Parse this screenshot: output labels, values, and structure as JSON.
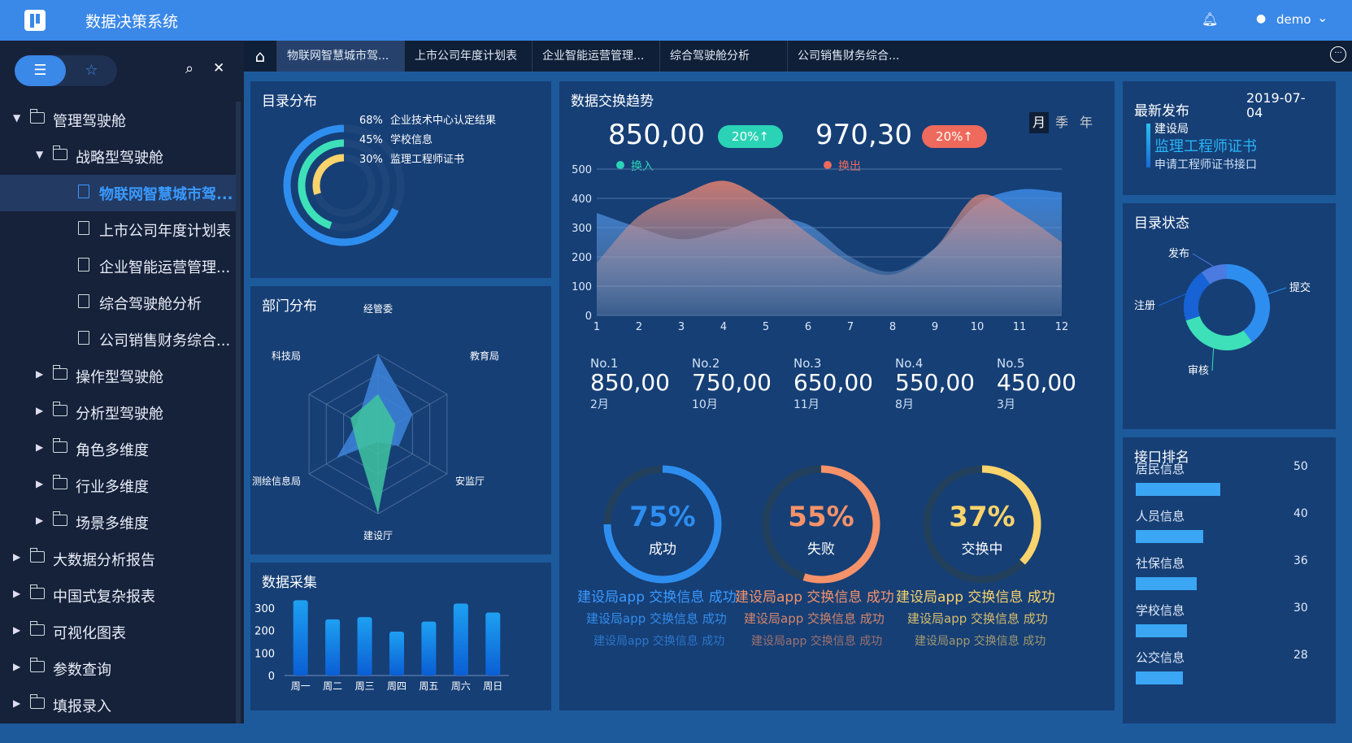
{
  "app": {
    "title": "数据决策系统",
    "username": "demo"
  },
  "sidebar": {
    "tree": [
      {
        "label": "管理驾驶舱",
        "level": 0,
        "type": "folder",
        "expanded": true
      },
      {
        "label": "战略型驾驶舱",
        "level": 1,
        "type": "folder",
        "expanded": true
      },
      {
        "label": "物联网智慧城市驾...",
        "level": 2,
        "type": "doc",
        "active": true
      },
      {
        "label": "上市公司年度计划表",
        "level": 2,
        "type": "doc"
      },
      {
        "label": "企业智能运营管理...",
        "level": 2,
        "type": "doc"
      },
      {
        "label": "综合驾驶舱分析",
        "level": 2,
        "type": "doc"
      },
      {
        "label": "公司销售财务综合...",
        "level": 2,
        "type": "doc"
      },
      {
        "label": "操作型驾驶舱",
        "level": 1,
        "type": "folder"
      },
      {
        "label": "分析型驾驶舱",
        "level": 1,
        "type": "folder"
      },
      {
        "label": "角色多维度",
        "level": 1,
        "type": "folder"
      },
      {
        "label": "行业多维度",
        "level": 1,
        "type": "folder"
      },
      {
        "label": "场景多维度",
        "level": 1,
        "type": "folder"
      },
      {
        "label": "大数据分析报告",
        "level": 0,
        "type": "folder"
      },
      {
        "label": "中国式复杂报表",
        "level": 0,
        "type": "folder"
      },
      {
        "label": "可视化图表",
        "level": 0,
        "type": "folder"
      },
      {
        "label": "参数查询",
        "level": 0,
        "type": "folder"
      },
      {
        "label": "填报录入",
        "level": 0,
        "type": "folder"
      }
    ]
  },
  "tabs": [
    {
      "label": "物联网智慧城市驾...",
      "active": true
    },
    {
      "label": "上市公司年度计划表"
    },
    {
      "label": "企业智能运营管理..."
    },
    {
      "label": "综合驾驶舱分析"
    },
    {
      "label": "公司销售财务综合..."
    }
  ],
  "catalog": {
    "title": "目录分布",
    "items": [
      {
        "pct": "68%",
        "label": "企业技术中心认定结果",
        "value": 68,
        "color": "#2e8ef0"
      },
      {
        "pct": "45%",
        "label": "学校信息",
        "value": 45,
        "color": "#3de0b8"
      },
      {
        "pct": "30%",
        "label": "监理工程师证书",
        "value": 30,
        "color": "#f9d36b"
      }
    ]
  },
  "dept": {
    "title": "部门分布",
    "axes": [
      "经管委",
      "教育局",
      "安监厅",
      "建设厅",
      "测绘信息局",
      "科技局"
    ]
  },
  "collect": {
    "title": "数据采集",
    "chart_data": {
      "type": "bar",
      "categories": [
        "周一",
        "周二",
        "周三",
        "周四",
        "周五",
        "周六",
        "周日"
      ],
      "values": [
        335,
        250,
        260,
        195,
        240,
        320,
        280
      ],
      "yticks": [
        0,
        100,
        200,
        300
      ],
      "ylim": [
        0,
        350
      ]
    }
  },
  "trend": {
    "title": "数据交换趋势",
    "periods": [
      "月",
      "季",
      "年"
    ],
    "stat_in": {
      "value": "850,00",
      "pill": "20%↑",
      "legend": "换入",
      "color": "#2ad3b5"
    },
    "stat_out": {
      "value": "970,30",
      "pill": "20%↑",
      "legend": "换出",
      "color": "#ee6a5c"
    },
    "chart_data": {
      "type": "area",
      "x": [
        1,
        2,
        3,
        4,
        5,
        6,
        7,
        8,
        9,
        10,
        11,
        12
      ],
      "ylim": [
        0,
        500
      ],
      "yticks": [
        0,
        100,
        200,
        300,
        400,
        500
      ],
      "series": [
        {
          "name": "换入",
          "values": [
            350,
            300,
            260,
            290,
            330,
            310,
            200,
            150,
            230,
            380,
            430,
            420
          ],
          "color": "#3a8ae8"
        },
        {
          "name": "换出",
          "values": [
            180,
            340,
            410,
            460,
            390,
            280,
            180,
            140,
            230,
            410,
            350,
            250
          ],
          "color": "#e7806e"
        }
      ]
    },
    "ranks": [
      {
        "no": "No.1",
        "value": "850,00",
        "month": "2月"
      },
      {
        "no": "No.2",
        "value": "750,00",
        "month": "10月"
      },
      {
        "no": "No.3",
        "value": "650,00",
        "month": "11月"
      },
      {
        "no": "No.4",
        "value": "550,00",
        "month": "8月"
      },
      {
        "no": "No.5",
        "value": "450,00",
        "month": "3月"
      }
    ],
    "gauges": [
      {
        "pct": "75%",
        "value": 75,
        "label": "成功",
        "color": "#2e8ef0"
      },
      {
        "pct": "55%",
        "value": 55,
        "label": "失败",
        "color": "#f5926a"
      },
      {
        "pct": "37%",
        "value": 37,
        "label": "交换中",
        "color": "#f9d36b"
      }
    ],
    "tickers": [
      {
        "text": "建设局app 交换信息 成功",
        "color": "#3a9aff"
      },
      {
        "text": "建设局app 交换信息 成功",
        "color": "#f5926a"
      },
      {
        "text": "建设局app 交换信息 成功",
        "color": "#f9d36b"
      }
    ]
  },
  "latest": {
    "title": "最新发布",
    "date": "2019-07-",
    "date_cut": "04",
    "dept": "建设局",
    "headline": "监理工程师证书",
    "sub": "申请工程师证书接口"
  },
  "status": {
    "title": "目录状态",
    "chart_data": {
      "type": "pie",
      "labels": [
        "提交",
        "审核",
        "注册",
        "发布"
      ],
      "values": [
        40,
        30,
        20,
        10
      ],
      "colors": [
        "#2e8ef0",
        "#3de0b8",
        "#1763d6",
        "#4b7ae0"
      ]
    }
  },
  "iface": {
    "title": "接口排名",
    "chart_data": {
      "type": "bar",
      "categories": [
        "居民信息",
        "人员信息",
        "社保信息",
        "学校信息",
        "公交信息"
      ],
      "values": [
        50,
        40,
        36,
        30,
        28
      ],
      "xmax": 60
    }
  }
}
